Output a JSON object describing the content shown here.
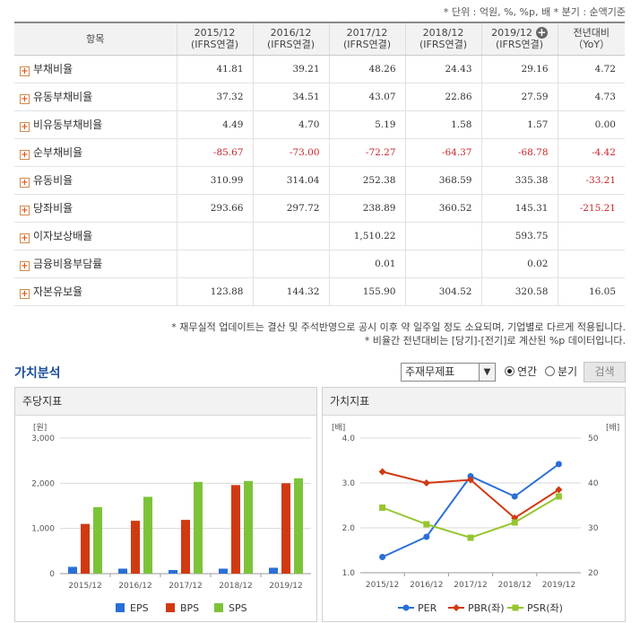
{
  "unit_note": "* 단위 : 억원, %, %p, 배    * 분기 : 순액기준",
  "table": {
    "headers": [
      "항목",
      "2015/12",
      "2016/12",
      "2017/12",
      "2018/12",
      "2019/12",
      "전년대비"
    ],
    "subheaders": [
      "",
      "(IFRS연결)",
      "(IFRS연결)",
      "(IFRS연결)",
      "(IFRS연결)",
      "(IFRS연결)",
      "（YoY）"
    ],
    "rows": [
      {
        "label": "부채비율",
        "values": [
          "41.81",
          "39.21",
          "48.26",
          "24.43",
          "29.16",
          "4.72"
        ]
      },
      {
        "label": "유동부채비율",
        "values": [
          "37.32",
          "34.51",
          "43.07",
          "22.86",
          "27.59",
          "4.73"
        ]
      },
      {
        "label": "비유동부채비율",
        "values": [
          "4.49",
          "4.70",
          "5.19",
          "1.58",
          "1.57",
          "0.00"
        ]
      },
      {
        "label": "순부채비율",
        "values": [
          "-85.67",
          "-73.00",
          "-72.27",
          "-64.37",
          "-68.78",
          "-4.42"
        ]
      },
      {
        "label": "유동비율",
        "values": [
          "310.99",
          "314.04",
          "252.38",
          "368.59",
          "335.38",
          "-33.21"
        ]
      },
      {
        "label": "당좌비율",
        "values": [
          "293.66",
          "297.72",
          "238.89",
          "360.52",
          "145.31",
          "-215.21"
        ]
      },
      {
        "label": "이자보상배율",
        "values": [
          "",
          "",
          "1,510.22",
          "",
          "593.75",
          ""
        ]
      },
      {
        "label": "금융비용부담률",
        "values": [
          "",
          "",
          "0.01",
          "",
          "0.02",
          ""
        ]
      },
      {
        "label": "자본유보율",
        "values": [
          "123.88",
          "144.32",
          "155.90",
          "304.52",
          "320.58",
          "16.05"
        ]
      }
    ]
  },
  "footnotes": [
    "* 재무실적 업데이트는 결산 및 주석반영으로 공시 이후 약 일주일 정도 소요되며, 기업별로 다르게 적용됩니다.",
    "* 비율간 전년대비는 [당기]-[전기]로 계산된 %p 데이터입니다."
  ],
  "value_section": {
    "title": "가치분석",
    "select_value": "주재무제표",
    "radio_annual": "연간",
    "radio_quarter": "분기",
    "search_button": "검색"
  },
  "colors": {
    "EPS": "#2a6fd6",
    "BPS": "#d03a12",
    "SPS": "#7cc33a",
    "PER": "#2a6fd6",
    "PBR": "#d03a12",
    "PSR": "#96c531"
  },
  "chart_data": [
    {
      "type": "bar",
      "title": "주당지표",
      "ylabel": "[원]",
      "ylim": [
        0,
        3000
      ],
      "yticks": [
        "0",
        "1,000",
        "2,000",
        "3,000"
      ],
      "categories": [
        "2015/12",
        "2016/12",
        "2017/12",
        "2018/12",
        "2019/12"
      ],
      "series": [
        {
          "name": "EPS",
          "values": [
            150,
            110,
            80,
            110,
            130
          ]
        },
        {
          "name": "BPS",
          "values": [
            1100,
            1170,
            1190,
            1960,
            2000
          ]
        },
        {
          "name": "SPS",
          "values": [
            1470,
            1700,
            2030,
            2050,
            2110
          ]
        }
      ],
      "legend": "bottom"
    },
    {
      "type": "line",
      "title": "가치지표",
      "ylabel_left": "[배]",
      "ylabel_right": "[배]",
      "ylim_left": [
        1.0,
        4.0
      ],
      "ylim_right": [
        20,
        50
      ],
      "yticks_left": [
        "1.0",
        "2.0",
        "3.0",
        "4.0"
      ],
      "yticks_right": [
        "20",
        "30",
        "40",
        "50"
      ],
      "categories": [
        "2015/12",
        "2016/12",
        "2017/12",
        "2018/12",
        "2019/12"
      ],
      "series": [
        {
          "name": "PER",
          "axis": "left",
          "marker": "circle",
          "values": [
            1.35,
            1.8,
            3.15,
            2.7,
            3.42
          ]
        },
        {
          "name": "PBR(좌)",
          "axis": "left",
          "marker": "diamond",
          "values": [
            3.25,
            3.0,
            3.07,
            2.22,
            2.85
          ]
        },
        {
          "name": "PSR(좌)",
          "axis": "left",
          "marker": "square",
          "values": [
            2.45,
            2.08,
            1.78,
            2.12,
            2.7
          ]
        }
      ],
      "legend": "bottom"
    }
  ]
}
